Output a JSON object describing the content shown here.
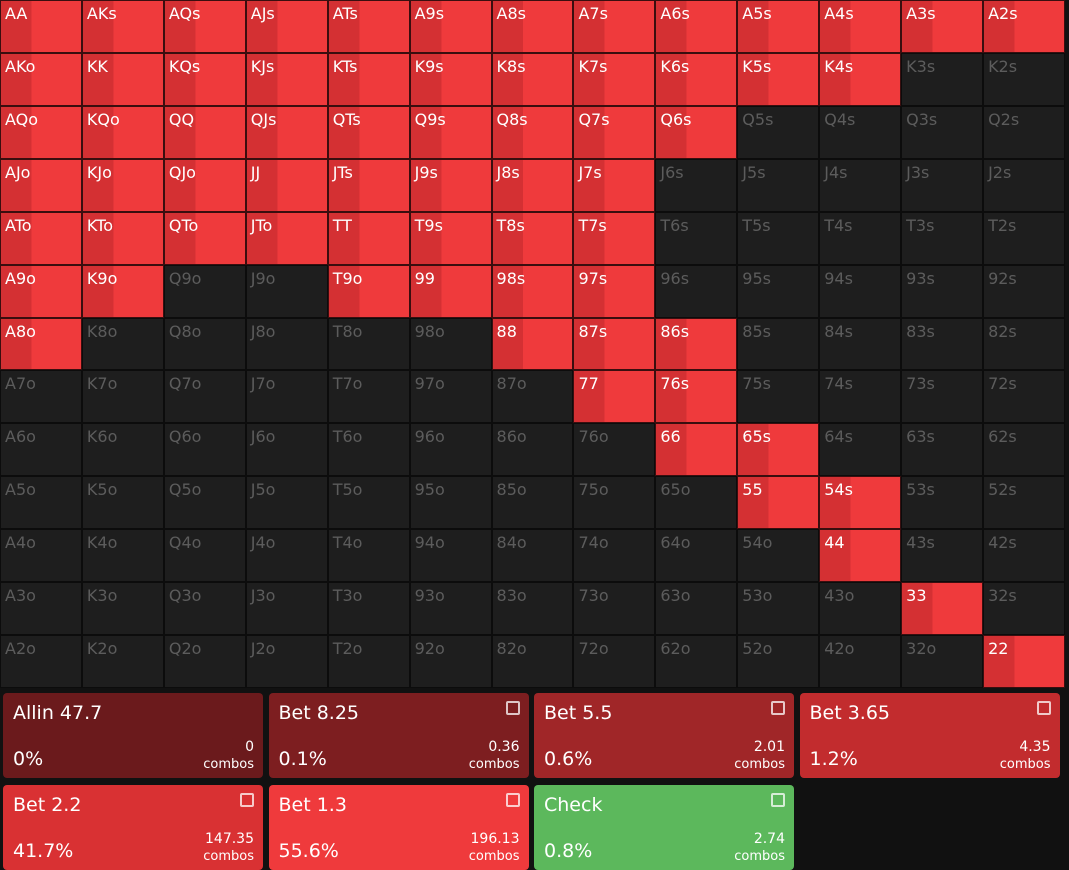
{
  "grid": {
    "rows": [
      [
        "AA",
        "AKs",
        "AQs",
        "AJs",
        "ATs",
        "A9s",
        "A8s",
        "A7s",
        "A6s",
        "A5s",
        "A4s",
        "A3s",
        "A2s"
      ],
      [
        "AKo",
        "KK",
        "KQs",
        "KJs",
        "KTs",
        "K9s",
        "K8s",
        "K7s",
        "K6s",
        "K5s",
        "K4s",
        "K3s",
        "K2s"
      ],
      [
        "AQo",
        "KQo",
        "QQ",
        "QJs",
        "QTs",
        "Q9s",
        "Q8s",
        "Q7s",
        "Q6s",
        "Q5s",
        "Q4s",
        "Q3s",
        "Q2s"
      ],
      [
        "AJo",
        "KJo",
        "QJo",
        "JJ",
        "JTs",
        "J9s",
        "J8s",
        "J7s",
        "J6s",
        "J5s",
        "J4s",
        "J3s",
        "J2s"
      ],
      [
        "ATo",
        "KTo",
        "QTo",
        "JTo",
        "TT",
        "T9s",
        "T8s",
        "T7s",
        "T6s",
        "T5s",
        "T4s",
        "T3s",
        "T2s"
      ],
      [
        "A9o",
        "K9o",
        "Q9o",
        "J9o",
        "T9o",
        "99",
        "98s",
        "97s",
        "96s",
        "95s",
        "94s",
        "93s",
        "92s"
      ],
      [
        "A8o",
        "K8o",
        "Q8o",
        "J8o",
        "T8o",
        "98o",
        "88",
        "87s",
        "86s",
        "85s",
        "84s",
        "83s",
        "82s"
      ],
      [
        "A7o",
        "K7o",
        "Q7o",
        "J7o",
        "T7o",
        "97o",
        "87o",
        "77",
        "76s",
        "75s",
        "74s",
        "73s",
        "72s"
      ],
      [
        "A6o",
        "K6o",
        "Q6o",
        "J6o",
        "T6o",
        "96o",
        "86o",
        "76o",
        "66",
        "65s",
        "64s",
        "63s",
        "62s"
      ],
      [
        "A5o",
        "K5o",
        "Q5o",
        "J5o",
        "T5o",
        "95o",
        "85o",
        "75o",
        "65o",
        "55",
        "54s",
        "53s",
        "52s"
      ],
      [
        "A4o",
        "K4o",
        "Q4o",
        "J4o",
        "T4o",
        "94o",
        "84o",
        "74o",
        "64o",
        "54o",
        "44",
        "43s",
        "42s"
      ],
      [
        "A3o",
        "K3o",
        "Q3o",
        "J3o",
        "T3o",
        "93o",
        "83o",
        "73o",
        "63o",
        "53o",
        "43o",
        "33",
        "32s"
      ],
      [
        "A2o",
        "K2o",
        "Q2o",
        "J2o",
        "T2o",
        "92o",
        "82o",
        "72o",
        "62o",
        "52o",
        "42o",
        "32o",
        "22"
      ]
    ],
    "in_range": [
      [
        true,
        true,
        true,
        true,
        true,
        true,
        true,
        true,
        true,
        true,
        true,
        true,
        true
      ],
      [
        true,
        true,
        true,
        true,
        true,
        true,
        true,
        true,
        true,
        true,
        true,
        false,
        false
      ],
      [
        true,
        true,
        true,
        true,
        true,
        true,
        true,
        true,
        true,
        false,
        false,
        false,
        false
      ],
      [
        true,
        true,
        true,
        true,
        true,
        true,
        true,
        true,
        false,
        false,
        false,
        false,
        false
      ],
      [
        true,
        true,
        true,
        true,
        true,
        true,
        true,
        true,
        false,
        false,
        false,
        false,
        false
      ],
      [
        true,
        true,
        false,
        false,
        true,
        true,
        true,
        true,
        false,
        false,
        false,
        false,
        false
      ],
      [
        true,
        false,
        false,
        false,
        false,
        false,
        true,
        true,
        true,
        false,
        false,
        false,
        false
      ],
      [
        false,
        false,
        false,
        false,
        false,
        false,
        false,
        true,
        true,
        false,
        false,
        false,
        false
      ],
      [
        false,
        false,
        false,
        false,
        false,
        false,
        false,
        false,
        true,
        true,
        false,
        false,
        false
      ],
      [
        false,
        false,
        false,
        false,
        false,
        false,
        false,
        false,
        false,
        true,
        true,
        false,
        false
      ],
      [
        false,
        false,
        false,
        false,
        false,
        false,
        false,
        false,
        false,
        false,
        true,
        false,
        false
      ],
      [
        false,
        false,
        false,
        false,
        false,
        false,
        false,
        false,
        false,
        false,
        false,
        true,
        false
      ],
      [
        false,
        false,
        false,
        false,
        false,
        false,
        false,
        false,
        false,
        false,
        false,
        false,
        true
      ]
    ]
  },
  "actions": [
    {
      "label": "Allin 47.7",
      "percent": "0%",
      "combos": "0",
      "unit": "combos",
      "color": "#6b1a1c",
      "icon": false
    },
    {
      "label": "Bet 8.25",
      "percent": "0.1%",
      "combos": "0.36",
      "unit": "combos",
      "color": "#7d1e20",
      "icon": true
    },
    {
      "label": "Bet 5.5",
      "percent": "0.6%",
      "combos": "2.01",
      "unit": "combos",
      "color": "#a02628",
      "icon": true
    },
    {
      "label": "Bet 3.65",
      "percent": "1.2%",
      "combos": "4.35",
      "unit": "combos",
      "color": "#c22c2e",
      "icon": true
    },
    {
      "label": "Bet 2.2",
      "percent": "41.7%",
      "combos": "147.35",
      "unit": "combos",
      "color": "#d93133",
      "icon": true
    },
    {
      "label": "Bet 1.3",
      "percent": "55.6%",
      "combos": "196.13",
      "unit": "combos",
      "color": "#ef3a3c",
      "icon": true
    },
    {
      "label": "Check",
      "percent": "0.8%",
      "combos": "2.74",
      "unit": "combos",
      "color": "#5cb85c",
      "icon": true
    }
  ]
}
